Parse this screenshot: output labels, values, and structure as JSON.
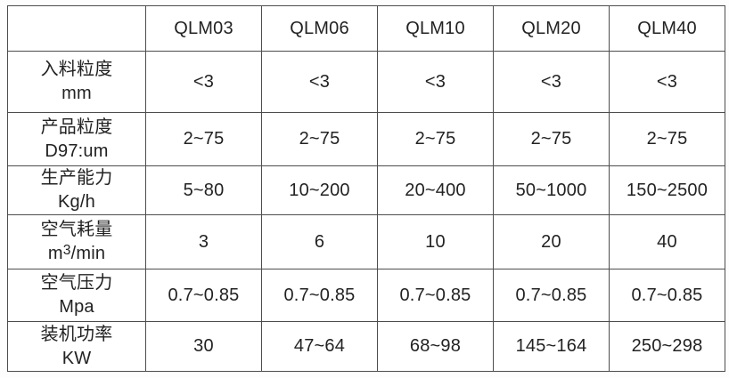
{
  "page": {
    "background_color": "#fdfdfd",
    "border_color": "#4d4d4d",
    "text_color": "#222222"
  },
  "table": {
    "header": {
      "corner": "",
      "models": [
        "QLM03",
        "QLM06",
        "QLM10",
        "QLM20",
        "QLM40"
      ]
    },
    "rows": [
      {
        "id": "feed-size",
        "label": [
          "入料粒度",
          "mm"
        ],
        "values": [
          "<3",
          "<3",
          "<3",
          "<3",
          "<3"
        ]
      },
      {
        "id": "product-size",
        "label": [
          "产品粒度",
          "D97:um"
        ],
        "values": [
          "2~75",
          "2~75",
          "2~75",
          "2~75",
          "2~75"
        ]
      },
      {
        "id": "production-capacity",
        "label": [
          "生产能力",
          "Kg/h"
        ],
        "values": [
          "5~80",
          "10~200",
          "20~400",
          "50~1000",
          "150~2500"
        ]
      },
      {
        "id": "air-consumption",
        "label": [
          "空气耗量",
          {
            "pre": "m",
            "sup": "3",
            "post": "/min"
          }
        ],
        "values": [
          "3",
          "6",
          "10",
          "20",
          "40"
        ]
      },
      {
        "id": "air-pressure",
        "label": [
          "空气压力",
          "Mpa"
        ],
        "values": [
          "0.7~0.85",
          "0.7~0.85",
          "0.7~0.85",
          "0.7~0.85",
          "0.7~0.85"
        ]
      },
      {
        "id": "installed-power",
        "label": [
          "装机功率",
          "KW"
        ],
        "values": [
          "30",
          "47~64",
          "68~98",
          "145~164",
          "250~298"
        ]
      }
    ]
  }
}
